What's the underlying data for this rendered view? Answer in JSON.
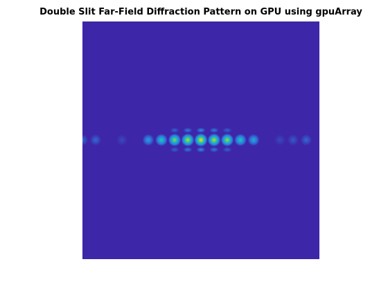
{
  "chart_data": {
    "type": "heatmap",
    "title": "Double Slit Far-Field Diffraction Pattern on GPU using gpuArray",
    "xlabel": "",
    "ylabel": "",
    "colormap": "parula",
    "colors": {
      "background": "#3e26a8",
      "low": "#3e26a8",
      "mid_low": "#2e7de0",
      "mid": "#15b9c6",
      "mid_high": "#7ecf52",
      "high": "#f5e21e"
    },
    "grid": false,
    "axes_visible": false,
    "main_row": {
      "description_values": "relative intensity of fringes along the central row, left to right",
      "x": [
        -9,
        -8,
        -6,
        -4,
        -3,
        -2,
        -1,
        0,
        1,
        2,
        3,
        4,
        6,
        7,
        8
      ],
      "intensity": [
        0.2,
        0.2,
        0.1,
        0.4,
        0.6,
        0.8,
        0.9,
        1.0,
        0.9,
        0.85,
        0.6,
        0.45,
        0.1,
        0.15,
        0.2
      ]
    },
    "side_rows": {
      "x": [
        -2,
        -1,
        0,
        1,
        2
      ],
      "intensity": [
        0.18,
        0.25,
        0.3,
        0.25,
        0.18
      ]
    }
  }
}
